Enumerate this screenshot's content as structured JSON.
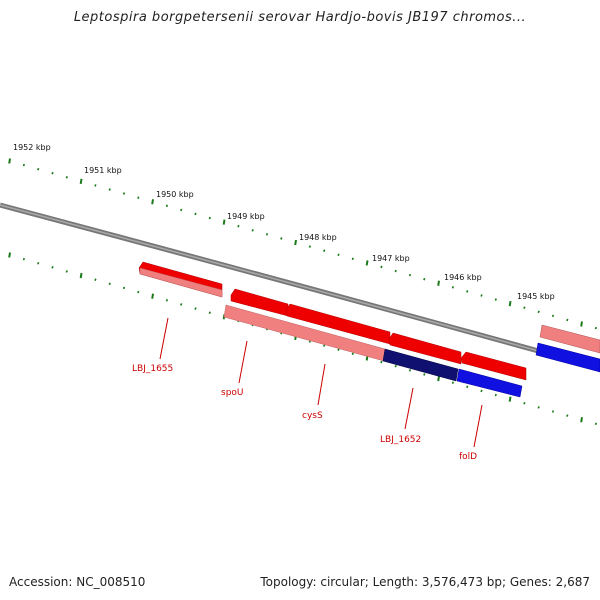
{
  "title": "Leptospira borgpetersenii serovar Hardjo-bovis JB197 chromos...",
  "scale_labels": [
    "1952 kbp",
    "1951 kbp",
    "1950 kbp",
    "1949 kbp",
    "1948 kbp",
    "1947 kbp",
    "1946 kbp",
    "1945 kbp"
  ],
  "gene_labels": [
    "LBJ_1655",
    "spoU",
    "cysS",
    "LBJ_1652",
    "folD"
  ],
  "colors": {
    "backbone": "#888888",
    "tick": "#1a7a1a",
    "forward_cds": "#ee0000",
    "forward_light": "#f08080",
    "reverse_cds": "#1010e0",
    "reverse_dark": "#101070",
    "label": "#cc0000"
  },
  "footer": {
    "accession": "Accession: NC_008510",
    "summary": "Topology: circular; Length: 3,576,473 bp; Genes: 2,687"
  }
}
